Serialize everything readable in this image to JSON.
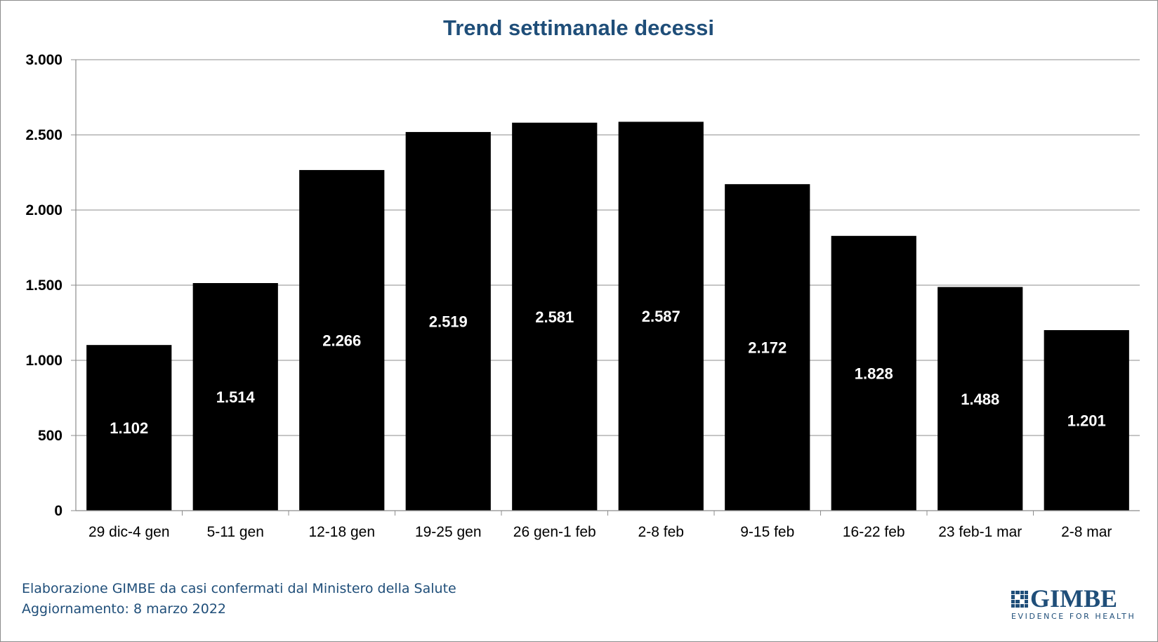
{
  "chart_data": {
    "type": "bar",
    "title": "Trend settimanale decessi",
    "categories": [
      "29 dic-4 gen",
      "5-11 gen",
      "12-18 gen",
      "19-25 gen",
      "26 gen-1 feb",
      "2-8 feb",
      "9-15 feb",
      "16-22 feb",
      "23 feb-1 mar",
      "2-8 mar"
    ],
    "values": [
      1102,
      1514,
      2266,
      2519,
      2581,
      2587,
      2172,
      1828,
      1488,
      1201
    ],
    "value_labels": [
      "1.102",
      "1.514",
      "2.266",
      "2.519",
      "2.581",
      "2.587",
      "2.172",
      "1.828",
      "1.488",
      "1.201"
    ],
    "yticks": [
      0,
      500,
      1000,
      1500,
      2000,
      2500,
      3000
    ],
    "ytick_labels": [
      "0",
      "500",
      "1.000",
      "1.500",
      "2.000",
      "2.500",
      "3.000"
    ],
    "ylim": [
      0,
      3000
    ],
    "grid": true,
    "legend": "none",
    "bar_color": "#000000",
    "title_color": "#1f4e79"
  },
  "footer": {
    "source": "Elaborazione GIMBE da casi confermati dal Ministero della Salute",
    "updated": "Aggiornamento: 8 marzo 2022"
  },
  "logo": {
    "name": "GIMBE",
    "tagline": "EVIDENCE FOR HEALTH",
    "icon": "gimbe-grid-icon",
    "color": "#1f4e79"
  }
}
